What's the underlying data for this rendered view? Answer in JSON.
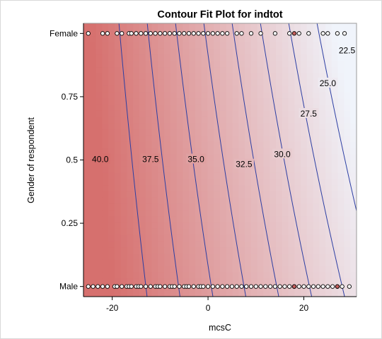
{
  "chart_data": {
    "type": "contour",
    "title": "Contour Fit Plot for indtot",
    "xlabel": "mcsC",
    "ylabel": "Gender of respondent",
    "xlim": [
      -26,
      31
    ],
    "ylim": [
      -0.04,
      1.04
    ],
    "x_ticks": [
      {
        "value": -20,
        "label": "-20"
      },
      {
        "value": 0,
        "label": "0"
      },
      {
        "value": 20,
        "label": "20"
      }
    ],
    "y_ticks": [
      {
        "value": 0,
        "label": "Male"
      },
      {
        "value": 0.25,
        "label": "0.25"
      },
      {
        "value": 0.5,
        "label": "0.5"
      },
      {
        "value": 0.75,
        "label": "0.75"
      },
      {
        "value": 1,
        "label": "Female"
      }
    ],
    "fit_model": {
      "intercept": 35.25,
      "slope_x": -0.366,
      "slope_y": -3.0,
      "slope_xy": -0.055
    },
    "contour_lines": [
      {
        "level": 40.0,
        "label": "40.0",
        "label_at": [
          -22.5,
          0.5
        ]
      },
      {
        "level": 37.5,
        "label": "37.5",
        "label_at": [
          -12,
          0.5
        ]
      },
      {
        "level": 35.0,
        "label": "35.0",
        "label_at": [
          -2.5,
          0.5
        ]
      },
      {
        "level": 32.5,
        "label": "32.5",
        "label_at": [
          7.5,
          0.48
        ]
      },
      {
        "level": 30.0,
        "label": "30.0",
        "label_at": [
          15.5,
          0.52
        ]
      },
      {
        "level": 27.5,
        "label": "27.5",
        "label_at": [
          21,
          0.68
        ]
      },
      {
        "level": 25.0,
        "label": "25.0",
        "label_at": [
          25,
          0.8
        ]
      },
      {
        "level": 22.5,
        "label": "22.5",
        "label_at": [
          29,
          0.93
        ]
      }
    ],
    "observations": {
      "male_x": [
        -25,
        -24,
        -23,
        -22,
        -21,
        -19.5,
        -19,
        -18,
        -17,
        -16.5,
        -16,
        -15,
        -14.5,
        -14,
        -13,
        -12,
        -11,
        -10.5,
        -10,
        -9,
        -8,
        -7.5,
        -7,
        -6,
        -5,
        -4.5,
        -4,
        -3,
        -2,
        -1.5,
        -1,
        0,
        1,
        2,
        3,
        4,
        5,
        6,
        7,
        8,
        9,
        10,
        11,
        12,
        13,
        14,
        15,
        16,
        17,
        18,
        19,
        20,
        21,
        22,
        23,
        24,
        25,
        26,
        27,
        28,
        29.5
      ],
      "female_x": [
        -25,
        -22,
        -21,
        -19,
        -18,
        -16.5,
        -16,
        -15,
        -14,
        -13,
        -12,
        -11,
        -10,
        -9,
        -8,
        -7,
        -6,
        -5,
        -4,
        -3,
        -2,
        -1,
        0,
        1,
        2,
        3,
        4,
        6,
        7,
        9,
        11,
        14,
        17,
        19,
        21,
        24,
        25,
        27,
        28.5
      ],
      "male_filled_x": [
        18,
        27
      ],
      "female_filled_x": [
        18
      ]
    },
    "colors": {
      "high": "#d6706e",
      "low": "#f0f4fb",
      "contour": "#2c3ea3",
      "marker_fill": "#ffffff",
      "marker_filled": "#c8605e",
      "marker_stroke": "#000000"
    },
    "grid": false,
    "legend": "none"
  }
}
